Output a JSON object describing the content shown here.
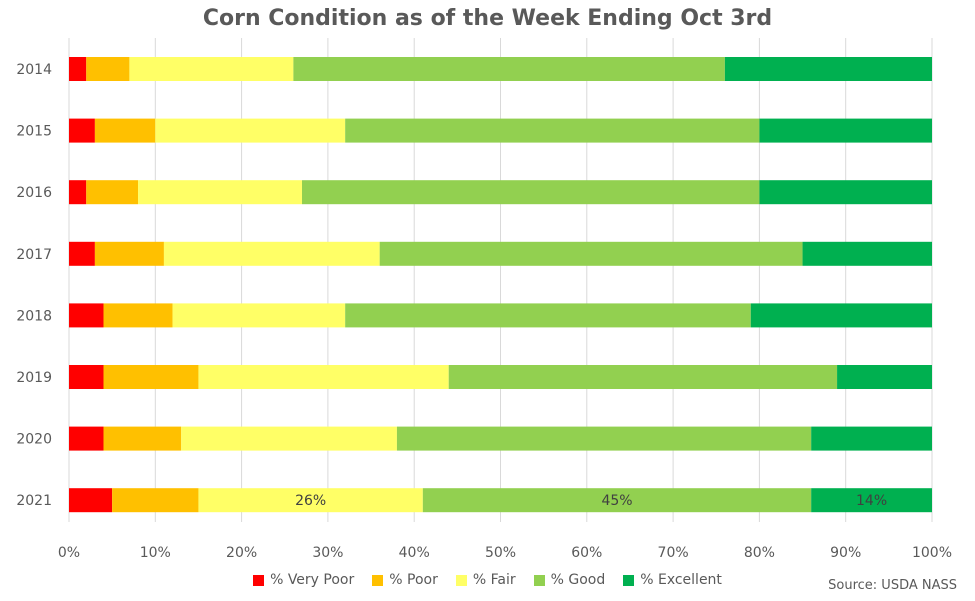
{
  "chart_data": {
    "type": "bar",
    "orientation": "horizontal",
    "stacked": true,
    "title": "Corn Condition as of the Week Ending Oct 3rd",
    "categories": [
      "2014",
      "2015",
      "2016",
      "2017",
      "2018",
      "2019",
      "2020",
      "2021"
    ],
    "series": [
      {
        "name": "% Very Poor",
        "color": "#ff0000",
        "values": [
          2,
          3,
          2,
          3,
          4,
          4,
          4,
          5
        ]
      },
      {
        "name": "% Poor",
        "color": "#ffc000",
        "values": [
          5,
          7,
          6,
          8,
          8,
          11,
          9,
          10
        ]
      },
      {
        "name": "% Fair",
        "color": "#ffff66",
        "values": [
          19,
          22,
          19,
          25,
          20,
          29,
          25,
          26
        ]
      },
      {
        "name": "% Good",
        "color": "#92d050",
        "values": [
          50,
          48,
          53,
          49,
          47,
          45,
          48,
          45
        ]
      },
      {
        "name": "% Excellent",
        "color": "#00b050",
        "values": [
          24,
          20,
          20,
          15,
          21,
          11,
          14,
          14
        ]
      }
    ],
    "data_labels": [
      {
        "category": "2021",
        "series": "% Fair",
        "text": "26%"
      },
      {
        "category": "2021",
        "series": "% Good",
        "text": "45%"
      },
      {
        "category": "2021",
        "series": "% Excellent",
        "text": "14%"
      }
    ],
    "xlim": [
      0,
      100
    ],
    "x_ticks": [
      "0%",
      "10%",
      "20%",
      "30%",
      "40%",
      "50%",
      "60%",
      "70%",
      "80%",
      "90%",
      "100%"
    ],
    "grid": "vertical",
    "legend_position": "bottom"
  },
  "source": "Source: USDA NASS"
}
